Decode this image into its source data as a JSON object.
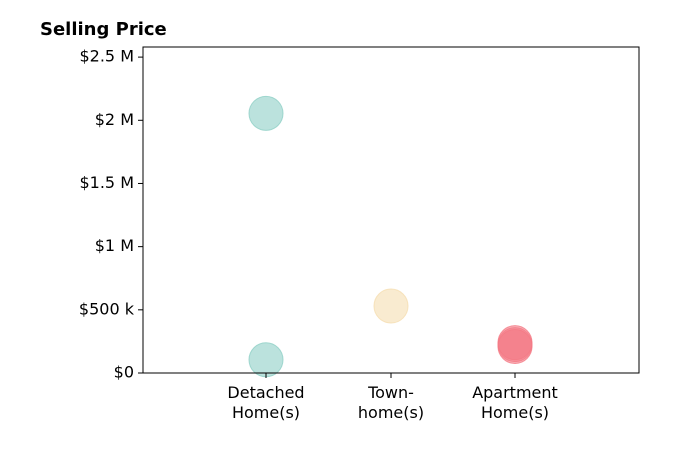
{
  "chart_data": {
    "type": "scatter",
    "title": "Selling Price",
    "xlabel": "",
    "ylabel": "",
    "categories": [
      [
        "Detached",
        "Home(s)"
      ],
      [
        "Town-",
        "home(s)"
      ],
      [
        "Apartment",
        "Home(s)"
      ]
    ],
    "ylim": [
      0,
      2580000
    ],
    "y_ticks": [
      {
        "value": 0,
        "label": "$0"
      },
      {
        "value": 500000,
        "label": "$500 k"
      },
      {
        "value": 1000000,
        "label": "$1 M"
      },
      {
        "value": 1500000,
        "label": "$1.5 M"
      },
      {
        "value": 2000000,
        "label": "$2 M"
      },
      {
        "value": 2500000,
        "label": "$2.5 M"
      }
    ],
    "grid": false,
    "legend": "none",
    "points": [
      {
        "category": 0,
        "y": 2055000,
        "color": "#8ecfc6"
      },
      {
        "category": 0,
        "y": 105000,
        "color": "#8ecfc6"
      },
      {
        "category": 1,
        "y": 530000,
        "color": "#f5ddb0"
      },
      {
        "category": 2,
        "y": 240000,
        "color": "#f47a86"
      },
      {
        "category": 2,
        "y": 210000,
        "color": "#f47a86"
      },
      {
        "category": 2,
        "y": 225000,
        "color": "#f47a86"
      }
    ]
  }
}
